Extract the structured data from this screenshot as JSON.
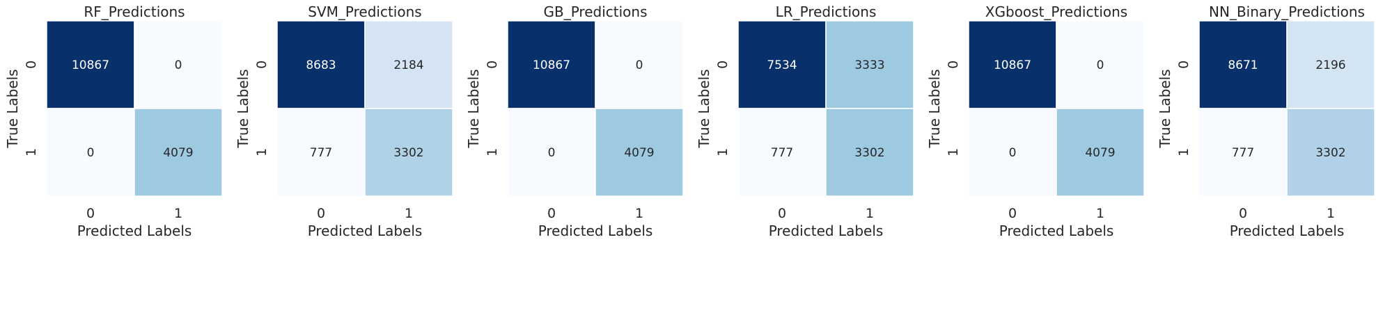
{
  "chart_data": [
    {
      "type": "heatmap",
      "title": "RF_Predictions",
      "xlabel": "Predicted Labels",
      "ylabel": "True Labels",
      "x_ticks": [
        "0",
        "1"
      ],
      "y_ticks": [
        "0",
        "1"
      ],
      "matrix": [
        [
          10867,
          0
        ],
        [
          0,
          4079
        ]
      ],
      "colormap": "Blues",
      "colorbar": false
    },
    {
      "type": "heatmap",
      "title": "SVM_Predictions",
      "xlabel": "Predicted Labels",
      "ylabel": "True Labels",
      "x_ticks": [
        "0",
        "1"
      ],
      "y_ticks": [
        "0",
        "1"
      ],
      "matrix": [
        [
          8683,
          2184
        ],
        [
          777,
          3302
        ]
      ],
      "colormap": "Blues",
      "colorbar": false
    },
    {
      "type": "heatmap",
      "title": "GB_Predictions",
      "xlabel": "Predicted Labels",
      "ylabel": "True Labels",
      "x_ticks": [
        "0",
        "1"
      ],
      "y_ticks": [
        "0",
        "1"
      ],
      "matrix": [
        [
          10867,
          0
        ],
        [
          0,
          4079
        ]
      ],
      "colormap": "Blues",
      "colorbar": false
    },
    {
      "type": "heatmap",
      "title": "LR_Predictions",
      "xlabel": "Predicted Labels",
      "ylabel": "True Labels",
      "x_ticks": [
        "0",
        "1"
      ],
      "y_ticks": [
        "0",
        "1"
      ],
      "matrix": [
        [
          7534,
          3333
        ],
        [
          777,
          3302
        ]
      ],
      "colormap": "Blues",
      "colorbar": false
    },
    {
      "type": "heatmap",
      "title": "XGboost_Predictions",
      "xlabel": "Predicted Labels",
      "ylabel": "True Labels",
      "x_ticks": [
        "0",
        "1"
      ],
      "y_ticks": [
        "0",
        "1"
      ],
      "matrix": [
        [
          10867,
          0
        ],
        [
          0,
          4079
        ]
      ],
      "colormap": "Blues",
      "colorbar": false
    },
    {
      "type": "heatmap",
      "title": "NN_Binary_Predictions",
      "xlabel": "Predicted Labels",
      "ylabel": "True Labels",
      "x_ticks": [
        "0",
        "1"
      ],
      "y_ticks": [
        "0",
        "1"
      ],
      "matrix": [
        [
          8671,
          2196
        ],
        [
          777,
          3302
        ]
      ],
      "colormap": "Blues",
      "colorbar": false
    }
  ]
}
